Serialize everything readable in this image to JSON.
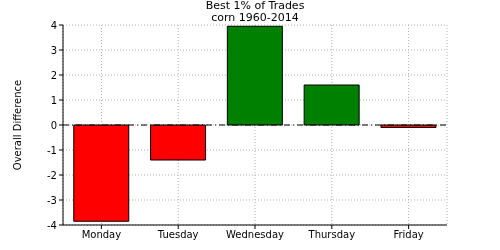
{
  "chart_data": {
    "type": "bar",
    "title": "Best 1% of Trades",
    "subtitle": "corn 1960-2014",
    "y_label": "Overall Difference",
    "categories": [
      "Monday",
      "Tuesday",
      "Wednesday",
      "Thursday",
      "Friday"
    ],
    "values": [
      -3.85,
      -1.4,
      3.95,
      1.6,
      -0.1
    ],
    "colors": [
      "#ff0000",
      "#ff0000",
      "#008000",
      "#008000",
      "#ff0000"
    ],
    "ylim": [
      -4,
      4
    ],
    "yticks": [
      -4,
      -3,
      -2,
      -1,
      0,
      1,
      2,
      3,
      4
    ],
    "grid": true
  }
}
